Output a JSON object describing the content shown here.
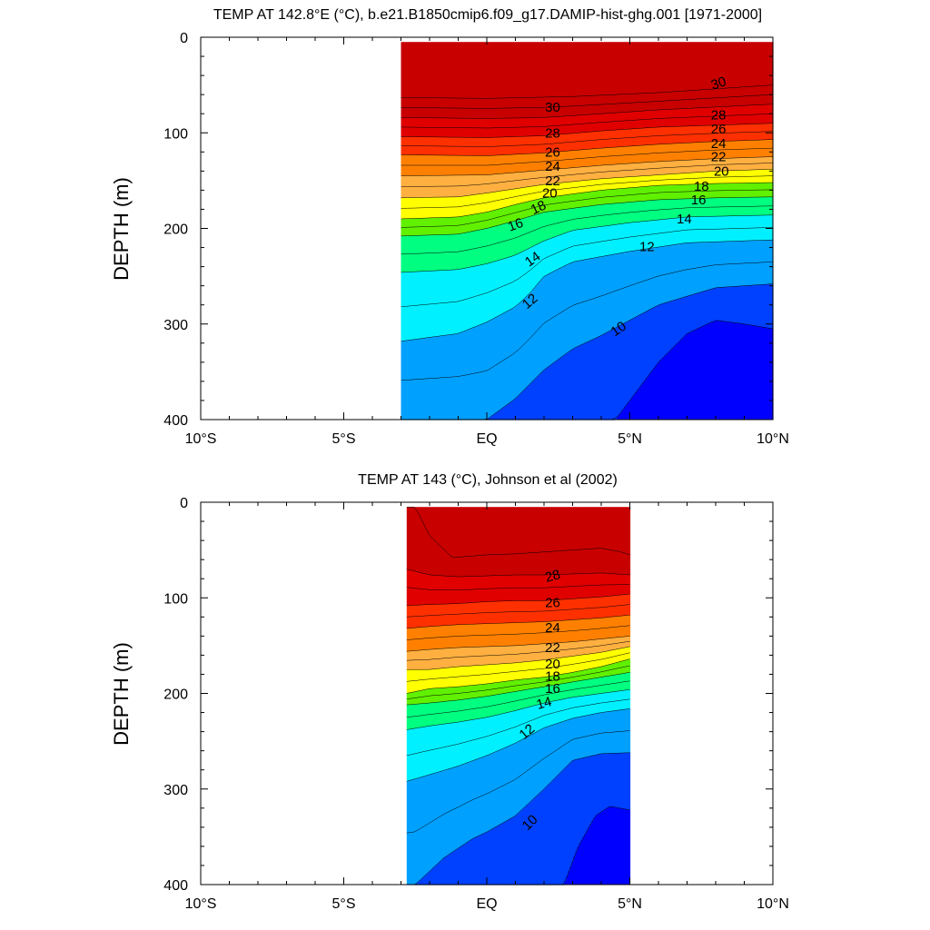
{
  "colors": {
    "levels": [
      "#0000FF",
      "#0041FF",
      "#0078FF",
      "#00A0FF",
      "#00C8FF",
      "#00F0FF",
      "#40FFD0",
      "#00FF80",
      "#00E000",
      "#60F000",
      "#B0FF00",
      "#FFFF00",
      "#FFD700",
      "#FFB040",
      "#FFA000",
      "#FF8000",
      "#FF6000",
      "#FF3000",
      "#FF0000",
      "#E00000",
      "#C80000"
    ]
  },
  "chart_data": [
    {
      "type": "heatmap",
      "subtype": "filled-contour depth-latitude section",
      "title": "TEMP AT 142.8°E (°C), b.e21.B1850cmip6.f09_g17.DAMIP-hist-ghg.001 [1971-2000]",
      "xlabel": "",
      "ylabel": "DEPTH (m)",
      "xlim": [
        -10,
        10
      ],
      "ylim": [
        400,
        0
      ],
      "x_ticks": [
        -10,
        -5,
        0,
        5,
        10
      ],
      "x_tick_labels": [
        "10°S",
        "5°S",
        "EQ",
        "5°N",
        "10°N"
      ],
      "y_ticks": [
        0,
        100,
        200,
        300,
        400
      ],
      "y_tick_labels": [
        "0",
        "100",
        "200",
        "300",
        "400"
      ],
      "data_extent": {
        "lat_min": -3,
        "lat_max": 10,
        "depth_top": 5,
        "depth_bottom": 400
      },
      "contour_interval": 1,
      "contour_lines": [
        {
          "level": 30,
          "points": [
            [
              -3,
              63
            ],
            [
              0,
              64
            ],
            [
              3,
              62
            ],
            [
              6,
              58
            ],
            [
              8,
              54
            ],
            [
              10,
              50
            ]
          ]
        },
        {
          "level": 28,
          "points": [
            [
              -3,
              84
            ],
            [
              0,
              85
            ],
            [
              2,
              84
            ],
            [
              4,
              80
            ],
            [
              6,
              76
            ],
            [
              8,
              73
            ],
            [
              10,
              70
            ]
          ]
        },
        {
          "level": 26,
          "points": [
            [
              -3,
              104
            ],
            [
              0,
              105
            ],
            [
              2,
              103
            ],
            [
              4,
              98
            ],
            [
              6,
              94
            ],
            [
              8,
              92
            ],
            [
              10,
              90
            ]
          ]
        },
        {
          "level": 24,
          "points": [
            [
              -3,
              123
            ],
            [
              0,
              124
            ],
            [
              2,
              121
            ],
            [
              4,
              116
            ],
            [
              6,
              112
            ],
            [
              8,
              109
            ],
            [
              10,
              107
            ]
          ]
        },
        {
          "level": 22,
          "points": [
            [
              -3,
              145
            ],
            [
              0,
              144
            ],
            [
              2,
              139
            ],
            [
              4,
              134
            ],
            [
              6,
              130
            ],
            [
              8,
              127
            ],
            [
              10,
              125
            ]
          ]
        },
        {
          "level": 20,
          "points": [
            [
              -3,
              168
            ],
            [
              -1,
              167
            ],
            [
              0,
              163
            ],
            [
              2,
              154
            ],
            [
              4,
              148
            ],
            [
              6,
              144
            ],
            [
              8,
              140
            ],
            [
              10,
              138
            ]
          ]
        },
        {
          "level": 18,
          "points": [
            [
              -3,
              190
            ],
            [
              -1,
              188
            ],
            [
              0,
              183
            ],
            [
              1,
              175
            ],
            [
              2,
              168
            ],
            [
              4,
              160
            ],
            [
              6,
              155
            ],
            [
              8,
              153
            ],
            [
              10,
              152
            ]
          ]
        },
        {
          "level": 16,
          "points": [
            [
              -3,
              208
            ],
            [
              -1,
              206
            ],
            [
              0,
              200
            ],
            [
              1,
              192
            ],
            [
              2,
              183
            ],
            [
              4,
              175
            ],
            [
              6,
              170
            ],
            [
              8,
              168
            ],
            [
              10,
              167
            ]
          ]
        },
        {
          "level": 14,
          "points": [
            [
              -3,
              246
            ],
            [
              -1,
              243
            ],
            [
              0,
              237
            ],
            [
              1,
              228
            ],
            [
              2,
              213
            ],
            [
              3,
              202
            ],
            [
              5,
              194
            ],
            [
              7,
              188
            ],
            [
              10,
              186
            ]
          ]
        },
        {
          "level": 12,
          "points": [
            [
              -3,
              318
            ],
            [
              -1,
              310
            ],
            [
              0,
              298
            ],
            [
              1,
              282
            ],
            [
              1.5,
              268
            ],
            [
              2,
              250
            ],
            [
              3,
              235
            ],
            [
              5,
              224
            ],
            [
              7,
              215
            ],
            [
              10,
              212
            ]
          ]
        },
        {
          "level": 10,
          "points": [
            [
              0,
              400
            ],
            [
              1,
              378
            ],
            [
              2,
              348
            ],
            [
              3,
              326
            ],
            [
              4,
              312
            ],
            [
              5,
              296
            ],
            [
              6,
              280
            ],
            [
              8,
              262
            ],
            [
              10,
              258
            ]
          ]
        },
        {
          "level": 9,
          "points": [
            [
              4.5,
              400
            ],
            [
              6,
              340
            ],
            [
              7,
              310
            ],
            [
              8,
              296
            ],
            [
              9,
              300
            ],
            [
              10,
              305
            ]
          ]
        }
      ],
      "contour_labels": [
        "30",
        "30",
        "28",
        "28",
        "26",
        "26",
        "24",
        "24",
        "22",
        "22",
        "20",
        "20",
        "18",
        "18",
        "16",
        "16",
        "14",
        "14",
        "12",
        "12",
        "10"
      ]
    },
    {
      "type": "heatmap",
      "subtype": "filled-contour depth-latitude section",
      "title": "TEMP AT 143 (°C), Johnson et al (2002)",
      "xlabel": "",
      "ylabel": "DEPTH (m)",
      "xlim": [
        -10,
        10
      ],
      "ylim": [
        400,
        0
      ],
      "x_ticks": [
        -10,
        -5,
        0,
        5,
        10
      ],
      "x_tick_labels": [
        "10°S",
        "5°S",
        "EQ",
        "5°N",
        "10°N"
      ],
      "y_ticks": [
        0,
        100,
        200,
        300,
        400
      ],
      "y_tick_labels": [
        "0",
        "100",
        "200",
        "300",
        "400"
      ],
      "data_extent": {
        "lat_min": -2.8,
        "lat_max": 5,
        "depth_top": 5,
        "depth_bottom": 400
      },
      "contour_interval": 1,
      "contour_lines": [
        {
          "level": 29,
          "points": [
            [
              -2.5,
              5
            ],
            [
              -2,
              35
            ],
            [
              -1.2,
              58
            ],
            [
              0,
              55
            ],
            [
              1,
              54
            ],
            [
              2,
              52
            ],
            [
              3,
              50
            ],
            [
              4,
              48
            ],
            [
              4.7,
              52
            ],
            [
              5,
              55
            ]
          ]
        },
        {
          "level": 28,
          "points": [
            [
              -2.8,
              70
            ],
            [
              -2,
              76
            ],
            [
              -1,
              78
            ],
            [
              0,
              77
            ],
            [
              1,
              76
            ],
            [
              2,
              76
            ],
            [
              3,
              75
            ],
            [
              4,
              74
            ],
            [
              5,
              76
            ]
          ]
        },
        {
          "level": 26,
          "points": [
            [
              -2.8,
              108
            ],
            [
              -2,
              107
            ],
            [
              -1,
              106
            ],
            [
              0,
              104
            ],
            [
              1,
              103
            ],
            [
              2,
              103
            ],
            [
              3,
              101
            ],
            [
              4,
              99
            ],
            [
              5,
              96
            ]
          ]
        },
        {
          "level": 24,
          "points": [
            [
              -2.8,
              132
            ],
            [
              -2,
              130
            ],
            [
              -1,
              128
            ],
            [
              0,
              127
            ],
            [
              1,
              126
            ],
            [
              2,
              125
            ],
            [
              3,
              123
            ],
            [
              4,
              121
            ],
            [
              5,
              118
            ]
          ]
        },
        {
          "level": 22,
          "points": [
            [
              -2.8,
              156
            ],
            [
              -2,
              154
            ],
            [
              -1,
              152
            ],
            [
              0,
              151
            ],
            [
              1,
              150
            ],
            [
              2,
              148
            ],
            [
              3,
              146
            ],
            [
              4,
              143
            ],
            [
              5,
              140
            ]
          ]
        },
        {
          "level": 20,
          "points": [
            [
              -2.8,
              175
            ],
            [
              -2,
              175
            ],
            [
              -1,
              172
            ],
            [
              0,
              170
            ],
            [
              1,
              168
            ],
            [
              2,
              165
            ],
            [
              3,
              161
            ],
            [
              4,
              157
            ],
            [
              5,
              151
            ]
          ]
        },
        {
          "level": 18,
          "points": [
            [
              -2.8,
              200
            ],
            [
              -2,
              195
            ],
            [
              -1,
              193
            ],
            [
              0,
              190
            ],
            [
              1,
              186
            ],
            [
              2,
              183
            ],
            [
              3,
              178
            ],
            [
              4,
              172
            ],
            [
              5,
              164
            ]
          ]
        },
        {
          "level": 16,
          "points": [
            [
              -2.8,
              212
            ],
            [
              -2,
              210
            ],
            [
              -1,
              207
            ],
            [
              0,
              203
            ],
            [
              1,
              198
            ],
            [
              2,
              193
            ],
            [
              3,
              188
            ],
            [
              4,
              183
            ],
            [
              5,
              178
            ]
          ]
        },
        {
          "level": 14,
          "points": [
            [
              -2.8,
              238
            ],
            [
              -2,
              234
            ],
            [
              -1,
              230
            ],
            [
              0,
              225
            ],
            [
              1,
              218
            ],
            [
              2,
              210
            ],
            [
              3,
              204
            ],
            [
              4,
              200
            ],
            [
              5,
              196
            ]
          ]
        },
        {
          "level": 12,
          "points": [
            [
              -2.8,
              292
            ],
            [
              -2,
              285
            ],
            [
              -1,
              276
            ],
            [
              0,
              265
            ],
            [
              1,
              252
            ],
            [
              2,
              236
            ],
            [
              3,
              226
            ],
            [
              4,
              220
            ],
            [
              5,
              216
            ]
          ]
        },
        {
          "level": 10,
          "points": [
            [
              -2.5,
              400
            ],
            [
              -1.5,
              372
            ],
            [
              -0.5,
              352
            ],
            [
              0,
              345
            ],
            [
              1,
              328
            ],
            [
              2,
              300
            ],
            [
              3,
              270
            ],
            [
              4,
              263
            ],
            [
              5,
              262
            ]
          ]
        },
        {
          "level": 9,
          "points": [
            [
              2.7,
              400
            ],
            [
              3.2,
              360
            ],
            [
              3.8,
              328
            ],
            [
              4.3,
              318
            ],
            [
              5,
              322
            ]
          ]
        }
      ],
      "contour_labels": [
        "28",
        "26",
        "24",
        "22",
        "20",
        "18",
        "16",
        "14",
        "12",
        "10"
      ]
    }
  ]
}
